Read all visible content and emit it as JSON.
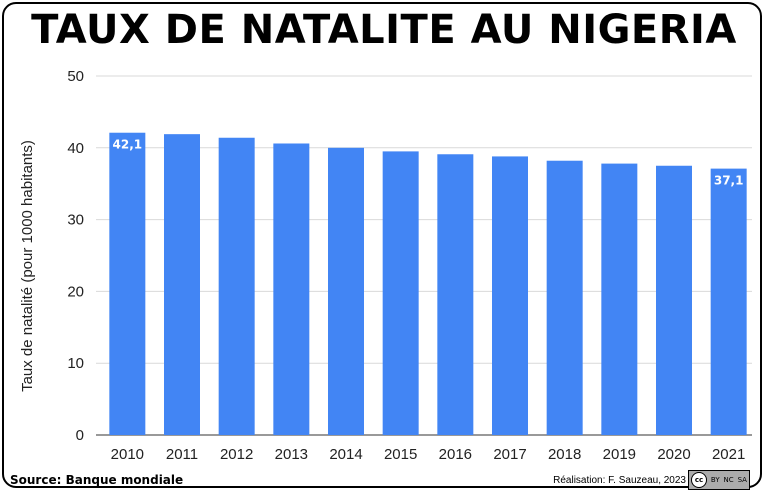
{
  "title": "TAUX DE NATALITE AU NIGERIA",
  "source": "Source: Banque mondiale",
  "credit": "Réalisation: F. Sauzeau, 2023",
  "license": {
    "label": "cc",
    "parts": [
      "BY",
      "NC",
      "SA"
    ]
  },
  "colors": {
    "bar": "#4285f4",
    "grid": "#d9d9d9",
    "axis": "#333333"
  },
  "chart_data": {
    "type": "bar",
    "categories": [
      "2010",
      "2011",
      "2012",
      "2013",
      "2014",
      "2015",
      "2016",
      "2017",
      "2018",
      "2019",
      "2020",
      "2021"
    ],
    "values": [
      42.1,
      41.9,
      41.4,
      40.6,
      40.0,
      39.5,
      39.1,
      38.8,
      38.2,
      37.8,
      37.5,
      37.1
    ],
    "data_labels": {
      "0": "42,1",
      "11": "37,1"
    },
    "ylabel": "Taux de natalité (pour 1000 habitants)",
    "xlabel": "",
    "ylim": [
      0,
      50
    ],
    "yticks": [
      0,
      10,
      20,
      30,
      40,
      50
    ],
    "grid": true
  }
}
